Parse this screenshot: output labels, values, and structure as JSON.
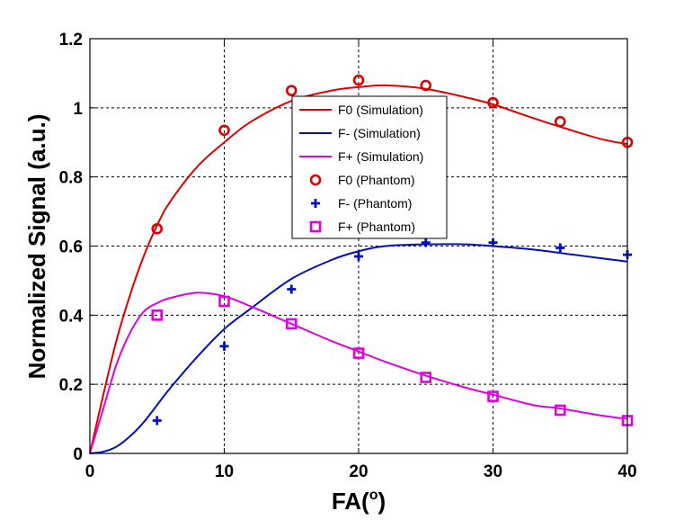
{
  "chart_data": {
    "type": "line",
    "xlabel": "FA(",
    "xlabel_sup": "o",
    "xlabel_suffix": ")",
    "ylabel": "Normalized Signal (a.u.)",
    "xlim": [
      0,
      40
    ],
    "ylim": [
      0,
      1.2
    ],
    "xticks": [
      0,
      10,
      20,
      30,
      40
    ],
    "yticks": [
      0,
      0.2,
      0.4,
      0.6,
      0.8,
      1,
      1.2
    ],
    "xtick_labels": [
      "0",
      "10",
      "20",
      "30",
      "40"
    ],
    "ytick_labels": [
      "0",
      "0.2",
      "0.4",
      "0.6",
      "0.8",
      "1",
      "1.2"
    ],
    "grid": true,
    "grid_style": "dashed",
    "legend_position": "top-center",
    "series": [
      {
        "name": "F0 (Simulation)",
        "kind": "line",
        "color": "#e00000",
        "x": [
          0,
          1,
          2,
          3,
          4,
          5,
          6,
          8,
          10,
          12,
          15,
          18,
          20,
          22,
          25,
          28,
          30,
          33,
          35,
          38,
          40
        ],
        "y": [
          0,
          0.17,
          0.33,
          0.46,
          0.57,
          0.66,
          0.73,
          0.83,
          0.9,
          0.96,
          1.02,
          1.05,
          1.06,
          1.065,
          1.055,
          1.03,
          1.01,
          0.97,
          0.945,
          0.91,
          0.895
        ]
      },
      {
        "name": "F- (Simulation)",
        "kind": "line",
        "color": "#0010c0",
        "x": [
          0,
          1,
          2,
          3,
          4,
          5,
          6,
          8,
          10,
          12,
          15,
          18,
          20,
          22,
          25,
          28,
          30,
          33,
          35,
          38,
          40
        ],
        "y": [
          0,
          0.005,
          0.02,
          0.05,
          0.09,
          0.14,
          0.19,
          0.28,
          0.36,
          0.42,
          0.505,
          0.56,
          0.585,
          0.6,
          0.605,
          0.605,
          0.6,
          0.59,
          0.58,
          0.565,
          0.555
        ]
      },
      {
        "name": "F+ (Simulation)",
        "kind": "line",
        "color": "#e000e0",
        "x": [
          0,
          1,
          2,
          3,
          4,
          5,
          6,
          8,
          10,
          12,
          15,
          18,
          20,
          22,
          25,
          28,
          30,
          33,
          35,
          38,
          40
        ],
        "y": [
          0,
          0.13,
          0.26,
          0.35,
          0.41,
          0.435,
          0.45,
          0.465,
          0.455,
          0.425,
          0.375,
          0.325,
          0.295,
          0.265,
          0.225,
          0.19,
          0.17,
          0.14,
          0.13,
          0.11,
          0.1
        ]
      },
      {
        "name": "F0 (Phantom)",
        "kind": "marker",
        "marker": "circle",
        "color": "#e00000",
        "x": [
          5,
          10,
          15,
          20,
          25,
          30,
          35,
          40
        ],
        "y": [
          0.65,
          0.935,
          1.05,
          1.08,
          1.065,
          1.015,
          0.96,
          0.9
        ]
      },
      {
        "name": "F- (Phantom)",
        "kind": "marker",
        "marker": "plus",
        "color": "#0010c0",
        "x": [
          5,
          10,
          15,
          20,
          25,
          30,
          35,
          40
        ],
        "y": [
          0.095,
          0.31,
          0.475,
          0.57,
          0.61,
          0.61,
          0.595,
          0.575
        ]
      },
      {
        "name": "F+ (Phantom)",
        "kind": "marker",
        "marker": "square",
        "color": "#e000e0",
        "x": [
          5,
          10,
          15,
          20,
          25,
          30,
          35,
          40
        ],
        "y": [
          0.4,
          0.44,
          0.375,
          0.29,
          0.22,
          0.165,
          0.125,
          0.095
        ]
      }
    ]
  }
}
